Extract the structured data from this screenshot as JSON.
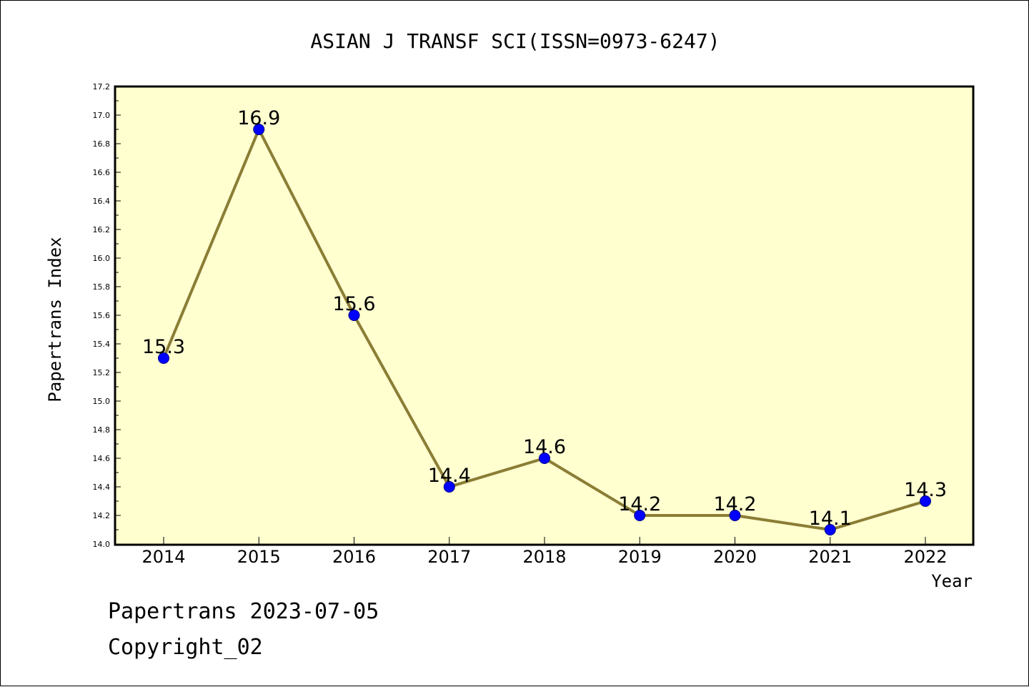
{
  "chart_data": {
    "type": "line",
    "title": "ASIAN J TRANSF SCI(ISSN=0973-6247)",
    "xlabel": "Year",
    "ylabel": "Papertrans Index",
    "categories": [
      "2014",
      "2015",
      "2016",
      "2017",
      "2018",
      "2019",
      "2020",
      "2021",
      "2022"
    ],
    "series": [
      {
        "values": [
          15.3,
          16.9,
          15.6,
          14.4,
          14.6,
          14.2,
          14.2,
          14.1,
          14.3
        ]
      }
    ],
    "data_labels": [
      "15.3",
      "16.9",
      "15.6",
      "14.4",
      "14.6",
      "14.2",
      "14.2",
      "14.1",
      "14.3"
    ],
    "ylim": [
      14.0,
      17.2
    ],
    "yticks": [
      "14.0",
      "14.2",
      "14.4",
      "14.6",
      "14.8",
      "15.0",
      "15.2",
      "15.4",
      "15.6",
      "15.8",
      "16.0",
      "16.2",
      "16.4",
      "16.6",
      "16.8",
      "17.0",
      "17.2"
    ],
    "grid": false,
    "colors": {
      "plot_background": "#ffffd0",
      "line": "#8b7d35",
      "marker": "#0000ff"
    }
  },
  "footer": {
    "line1": "Papertrans 2023-07-05",
    "line2": "Copyright_02"
  }
}
